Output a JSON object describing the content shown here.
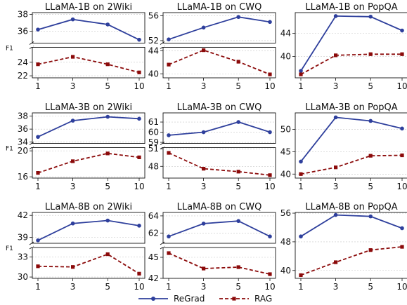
{
  "figure": {
    "ylabel": "F1",
    "legend": [
      {
        "name": "ReGrad",
        "color": "#2e3f9c",
        "style": "solid",
        "marker": "circle"
      },
      {
        "name": "RAG",
        "color": "#8b0a0a",
        "style": "dashed",
        "marker": "square"
      }
    ]
  },
  "chart_data": [
    {
      "type": "line",
      "title": "LLaMA-1B on 2Wiki",
      "categories": [
        "1",
        "3",
        "5",
        "10"
      ],
      "series": [
        {
          "name": "ReGrad",
          "values": [
            36.2,
            37.4,
            36.8,
            35.0
          ]
        },
        {
          "name": "RAG",
          "values": [
            23.7,
            24.8,
            23.7,
            22.5
          ]
        }
      ],
      "upper": {
        "ylim": [
          34.6,
          38.2
        ],
        "ticks": [
          "36",
          "38"
        ]
      },
      "lower": {
        "ylim": [
          21.7,
          26.2
        ],
        "ticks": [
          "22",
          "24"
        ]
      }
    },
    {
      "type": "line",
      "title": "LLaMA-1B on CWQ",
      "categories": [
        "1",
        "3",
        "5",
        "10"
      ],
      "series": [
        {
          "name": "ReGrad",
          "values": [
            52.2,
            54.1,
            55.8,
            55.0
          ]
        },
        {
          "name": "RAG",
          "values": [
            41.6,
            44.1,
            42.1,
            39.9
          ]
        }
      ],
      "upper": {
        "ylim": [
          51.6,
          56.5
        ],
        "ticks": [
          "52",
          "56"
        ]
      },
      "lower": {
        "ylim": [
          39.3,
          44.6
        ],
        "ticks": [
          "40",
          "44"
        ]
      }
    },
    {
      "type": "line",
      "title": "LLaMA-1B on PopQA",
      "categories": [
        "1",
        "3",
        "5",
        "10"
      ],
      "series": [
        {
          "name": "ReGrad",
          "values": [
            37.5,
            47.0,
            46.9,
            44.5
          ]
        },
        {
          "name": "RAG",
          "values": [
            36.9,
            40.2,
            40.4,
            40.4
          ]
        }
      ],
      "upper": {
        "ylim": [
          36.3,
          47.6
        ],
        "ticks": [
          "40",
          "44"
        ]
      },
      "lower": null
    },
    {
      "type": "line",
      "title": "LLaMA-3B on 2Wiki",
      "categories": [
        "1",
        "3",
        "5",
        "10"
      ],
      "series": [
        {
          "name": "ReGrad",
          "values": [
            34.8,
            37.3,
            37.9,
            37.6
          ]
        },
        {
          "name": "RAG",
          "values": [
            16.6,
            18.4,
            19.6,
            19.0
          ]
        }
      ],
      "upper": {
        "ylim": [
          33.8,
          38.5
        ],
        "ticks": [
          "34",
          "36",
          "38"
        ]
      },
      "lower": {
        "ylim": [
          15.8,
          20.5
        ],
        "ticks": [
          "16",
          "20"
        ]
      }
    },
    {
      "type": "line",
      "title": "LLaMA-3B on CWQ",
      "categories": [
        "1",
        "3",
        "5",
        "10"
      ],
      "series": [
        {
          "name": "ReGrad",
          "values": [
            59.7,
            60.0,
            61.0,
            60.0
          ]
        },
        {
          "name": "RAG",
          "values": [
            50.3,
            47.6,
            47.1,
            46.5
          ]
        }
      ],
      "upper": {
        "ylim": [
          58.9,
          61.9
        ],
        "ticks": [
          "59",
          "60",
          "61"
        ]
      },
      "lower": {
        "ylim": [
          46.0,
          51.2
        ],
        "ticks": [
          "48",
          "51"
        ]
      }
    },
    {
      "type": "line",
      "title": "LLaMA-3B on PopQA",
      "categories": [
        "1",
        "3",
        "5",
        "10"
      ],
      "series": [
        {
          "name": "ReGrad",
          "values": [
            42.8,
            52.7,
            51.9,
            50.2
          ]
        },
        {
          "name": "RAG",
          "values": [
            40.0,
            41.5,
            44.1,
            44.2
          ]
        }
      ],
      "upper": {
        "ylim": [
          39.1,
          53.7
        ],
        "ticks": [
          "40",
          "45",
          "50"
        ]
      },
      "lower": null
    },
    {
      "type": "line",
      "title": "LLaMA-8B on 2Wiki",
      "categories": [
        "1",
        "3",
        "5",
        "10"
      ],
      "series": [
        {
          "name": "ReGrad",
          "values": [
            38.6,
            40.9,
            41.3,
            40.6
          ]
        },
        {
          "name": "RAG",
          "values": [
            31.6,
            31.5,
            33.4,
            30.5
          ]
        }
      ],
      "upper": {
        "ylim": [
          38.2,
          42.4
        ],
        "ticks": [
          "39",
          "42"
        ]
      },
      "lower": {
        "ylim": [
          29.8,
          34.4
        ],
        "ticks": [
          "30",
          "33"
        ]
      }
    },
    {
      "type": "line",
      "title": "LLaMA-8B on CWQ",
      "categories": [
        "1",
        "3",
        "5",
        "10"
      ],
      "series": [
        {
          "name": "ReGrad",
          "values": [
            61.6,
            63.1,
            63.4,
            61.6
          ]
        },
        {
          "name": "RAG",
          "values": [
            45.6,
            43.4,
            43.6,
            42.6
          ]
        }
      ],
      "upper": {
        "ylim": [
          60.8,
          64.4
        ],
        "ticks": [
          "62",
          "64"
        ]
      },
      "lower": {
        "ylim": [
          42.0,
          46.4
        ],
        "ticks": [
          "42",
          "45"
        ]
      }
    },
    {
      "type": "line",
      "title": "LLaMA-8B on PopQA",
      "categories": [
        "1",
        "3",
        "5",
        "10"
      ],
      "series": [
        {
          "name": "ReGrad",
          "values": [
            49.5,
            55.5,
            55.1,
            51.8
          ]
        },
        {
          "name": "RAG",
          "values": [
            38.7,
            42.3,
            45.7,
            46.6
          ]
        }
      ],
      "upper": {
        "ylim": [
          37.8,
          56.2
        ],
        "ticks": [
          "40",
          "48",
          "56"
        ]
      },
      "lower": null
    }
  ]
}
